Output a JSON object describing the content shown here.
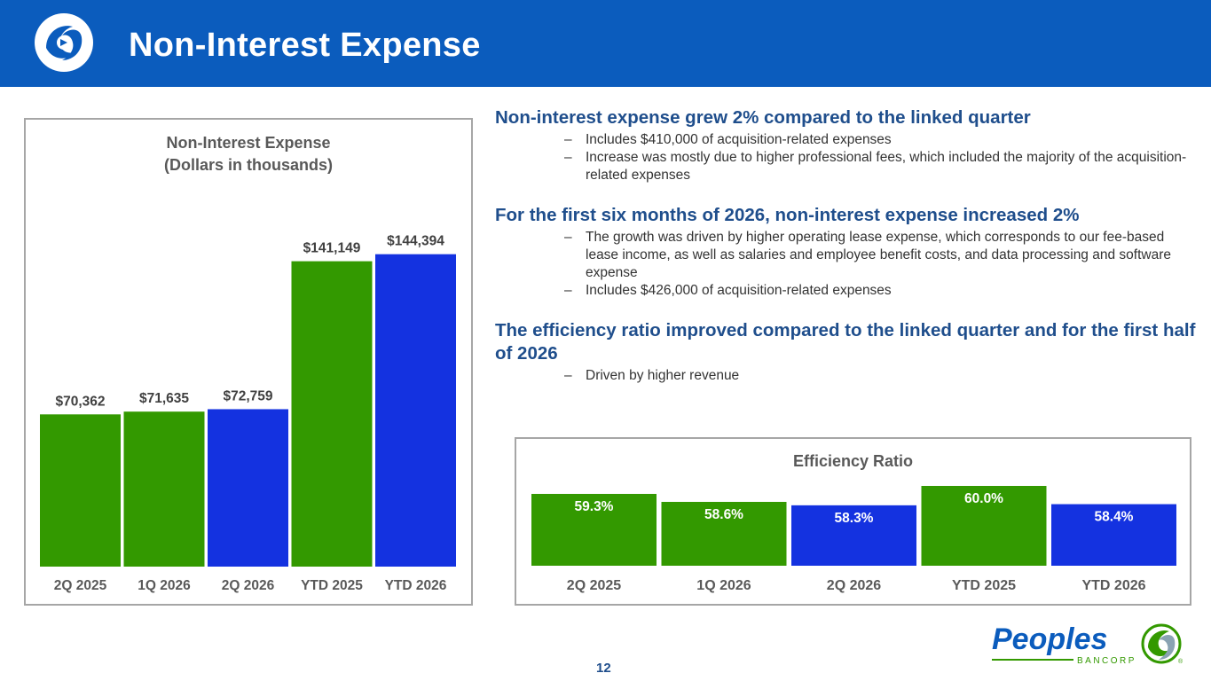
{
  "header": {
    "title": "Non-Interest Expense"
  },
  "bullets": [
    {
      "head": "Non-interest expense grew 2% compared to the linked quarter",
      "subs": [
        "Includes $410,000 of acquisition-related expenses",
        "Increase was mostly due to higher professional fees, which included the majority of the acquisition-related expenses"
      ]
    },
    {
      "head": "For the first six months of 2026, non-interest expense increased 2%",
      "subs": [
        "The growth was driven by higher operating lease expense, which corresponds to our fee-based lease income, as well as salaries and employee benefit costs, and data processing and software expense",
        "Includes $426,000 of acquisition-related expenses"
      ]
    },
    {
      "head": "The efficiency ratio improved compared to the linked quarter and for the first half of 2026",
      "subs": [
        "Driven by higher revenue"
      ]
    }
  ],
  "dash": "–",
  "page_number": "12",
  "footer": {
    "brand": "Peoples",
    "sub": "BANCORP",
    "mark": "®"
  },
  "colors": {
    "header": "#0b5cbd",
    "green": "#339900",
    "blue": "#1432e0",
    "heading": "#1f4e8c"
  },
  "chart_data": [
    {
      "type": "bar",
      "title": "Non-Interest Expense",
      "subtitle": "(Dollars in thousands)",
      "categories": [
        "2Q 2025",
        "1Q 2026",
        "2Q 2026",
        "YTD 2025",
        "YTD 2026"
      ],
      "values": [
        70362,
        71635,
        72759,
        141149,
        144394
      ],
      "labels": [
        "$70,362",
        "$71,635",
        "$72,759",
        "$141,149",
        "$144,394"
      ],
      "bar_colors": [
        "#339900",
        "#339900",
        "#1432e0",
        "#339900",
        "#1432e0"
      ],
      "ylim": [
        0,
        150000
      ],
      "grid": false,
      "legend": "none"
    },
    {
      "type": "bar",
      "title": "Efficiency Ratio",
      "categories": [
        "2Q 2025",
        "1Q 2026",
        "2Q 2026",
        "YTD 2025",
        "YTD 2026"
      ],
      "values": [
        59.3,
        58.6,
        58.3,
        60.0,
        58.4
      ],
      "labels": [
        "59.3%",
        "58.6%",
        "58.3%",
        "60.0%",
        "58.4%"
      ],
      "bar_colors": [
        "#339900",
        "#339900",
        "#1432e0",
        "#339900",
        "#1432e0"
      ],
      "ylim": [
        53,
        60
      ],
      "grid": false,
      "legend": "none"
    }
  ]
}
